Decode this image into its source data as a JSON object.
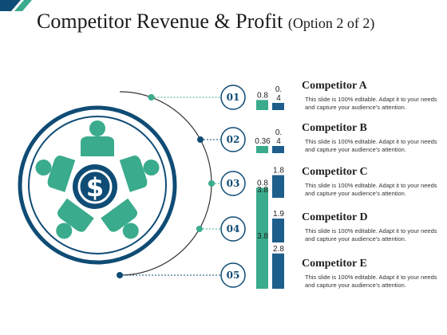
{
  "title": "Competitor Revenue & Profit",
  "subtitle": "(Option 2 of 2)",
  "colors": {
    "revenue": "#3aab8c",
    "profit": "#1d5e8c",
    "dark": "#0f4c75",
    "line": "#444444"
  },
  "icons": [
    "person-icon",
    "dollar-icon"
  ],
  "chart_data": {
    "type": "bar",
    "categories": [
      "Competitor A",
      "Competitor B",
      "Competitor C",
      "Competitor D",
      "Competitor E"
    ],
    "series": [
      {
        "values": [
          0.8,
          0.36,
          0.8,
          3.8,
          3.8
        ],
        "labels": [
          "0.8",
          "0.36",
          "0.8",
          "3.8",
          "3.8"
        ]
      },
      {
        "values": [
          0.4,
          0.4,
          1.8,
          1.9,
          2.8
        ],
        "labels": [
          "0.\n4",
          "0.\n4",
          "1.8",
          "1.9",
          "2.8"
        ]
      }
    ],
    "title": "",
    "xlabel": "",
    "ylabel": ""
  },
  "items": [
    {
      "number": "01",
      "name": "Competitor A",
      "desc": "This slide is 100% editable. Adapt it to your needs and capture your audience's attention."
    },
    {
      "number": "02",
      "name": "Competitor B",
      "desc": "This slide is 100% editable. Adapt it to your needs and capture your audience's attention."
    },
    {
      "number": "03",
      "name": "Competitor C",
      "desc": "This slide is 100% editable. Adapt it to your needs and capture your audience's attention."
    },
    {
      "number": "04",
      "name": "Competitor D",
      "desc": "This slide is 100% editable. Adapt it to your needs and capture your audience's attention."
    },
    {
      "number": "05",
      "name": "Competitor E",
      "desc": "This slide is 100% editable. Adapt it to your needs and capture your audience's attention."
    }
  ]
}
